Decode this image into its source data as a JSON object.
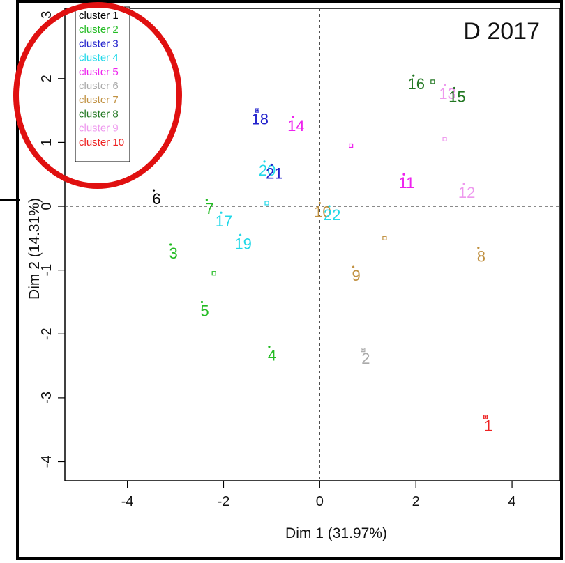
{
  "chart_data": {
    "type": "scatter",
    "title": "D 2017",
    "xlabel": "Dim 1 (31.97%)",
    "ylabel": "Dim 2 (14.31%)",
    "xlim": [
      -5.3,
      5.0
    ],
    "ylim": [
      -4.3,
      3.1
    ],
    "xticks": [
      -4,
      -2,
      0,
      2,
      4
    ],
    "yticks": [
      -4,
      -3,
      -2,
      -1,
      0,
      1,
      2,
      3
    ],
    "xtick_labels": [
      "-4",
      "-2",
      "0",
      "2",
      "4"
    ],
    "ytick_labels": [
      "-4",
      "-3",
      "-2",
      "-1",
      "0",
      "1",
      "2",
      "3"
    ],
    "reference_lines": [
      0,
      0
    ],
    "legend_position": "top-left",
    "legend": [
      {
        "label": "cluster 1",
        "color": "#000000"
      },
      {
        "label": "cluster 2",
        "color": "#22bb22"
      },
      {
        "label": "cluster 3",
        "color": "#2222cc"
      },
      {
        "label": "cluster 4",
        "color": "#22d8e8"
      },
      {
        "label": "cluster 5",
        "color": "#ee22ee"
      },
      {
        "label": "cluster 6",
        "color": "#aaaaaa"
      },
      {
        "label": "cluster 7",
        "color": "#c09040"
      },
      {
        "label": "cluster 8",
        "color": "#227722"
      },
      {
        "label": "cluster 9",
        "color": "#ee99ee"
      },
      {
        "label": "cluster 10",
        "color": "#ee2222"
      }
    ],
    "points": [
      {
        "label": "1",
        "x": 3.45,
        "y": -3.3,
        "cluster": 10
      },
      {
        "label": "2",
        "x": 0.9,
        "y": -2.25,
        "cluster": 6
      },
      {
        "label": "3",
        "x": -3.1,
        "y": -0.6,
        "cluster": 2
      },
      {
        "label": "4",
        "x": -1.05,
        "y": -2.2,
        "cluster": 2
      },
      {
        "label": "5",
        "x": -2.45,
        "y": -1.5,
        "cluster": 2
      },
      {
        "label": "6",
        "x": -3.45,
        "y": 0.25,
        "cluster": 1
      },
      {
        "label": "7",
        "x": -2.35,
        "y": 0.1,
        "cluster": 2
      },
      {
        "label": "8",
        "x": 3.3,
        "y": -0.65,
        "cluster": 7
      },
      {
        "label": "9",
        "x": 0.7,
        "y": -0.95,
        "cluster": 7
      },
      {
        "label": "10",
        "x": 0.0,
        "y": 0.05,
        "cluster": 7
      },
      {
        "label": "11",
        "x": 1.75,
        "y": 0.5,
        "cluster": 5
      },
      {
        "label": "12",
        "x": 3.0,
        "y": 0.35,
        "cluster": 9
      },
      {
        "label": "13",
        "x": 2.6,
        "y": 1.9,
        "cluster": 9
      },
      {
        "label": "14",
        "x": -0.55,
        "y": 1.4,
        "cluster": 5
      },
      {
        "label": "15",
        "x": 2.8,
        "y": 1.85,
        "cluster": 8
      },
      {
        "label": "16",
        "x": 1.95,
        "y": 2.05,
        "cluster": 8
      },
      {
        "label": "17",
        "x": -2.05,
        "y": -0.1,
        "cluster": 4
      },
      {
        "label": "18",
        "x": -1.3,
        "y": 1.5,
        "cluster": 3
      },
      {
        "label": "19",
        "x": -1.65,
        "y": -0.45,
        "cluster": 4
      },
      {
        "label": "20",
        "x": -1.15,
        "y": 0.7,
        "cluster": 4
      },
      {
        "label": "21",
        "x": -1.0,
        "y": 0.65,
        "cluster": 3
      },
      {
        "label": "22",
        "x": 0.2,
        "y": 0.0,
        "cluster": 4
      }
    ],
    "centroids": [
      {
        "x": 3.45,
        "y": -3.3,
        "cluster": 10
      },
      {
        "x": 0.9,
        "y": -2.25,
        "cluster": 6
      },
      {
        "x": -2.2,
        "y": -1.05,
        "cluster": 2
      },
      {
        "x": 1.35,
        "y": -0.5,
        "cluster": 7
      },
      {
        "x": -1.1,
        "y": 0.05,
        "cluster": 4
      },
      {
        "x": 0.65,
        "y": 0.95,
        "cluster": 5
      },
      {
        "x": -1.3,
        "y": 1.5,
        "cluster": 3
      },
      {
        "x": 2.6,
        "y": 1.05,
        "cluster": 9
      },
      {
        "x": 2.35,
        "y": 1.95,
        "cluster": 8
      }
    ]
  }
}
